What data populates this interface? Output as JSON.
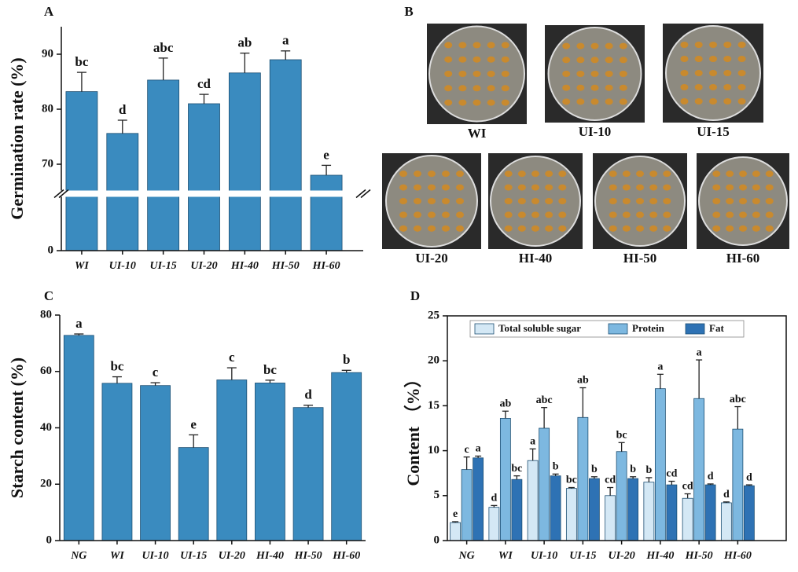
{
  "chart_data": [
    {
      "type": "bar",
      "panel_label": "A",
      "ylabel": "Germination rate (%)",
      "categories": [
        "WI",
        "UI-10",
        "UI-15",
        "UI-20",
        "HI-40",
        "HI-50",
        "HI-60"
      ],
      "values": [
        83.2,
        75.6,
        85.3,
        81,
        86.6,
        89,
        68
      ],
      "errors": [
        3.5,
        2.4,
        4,
        1.7,
        3.6,
        1.6,
        1.8
      ],
      "letters": [
        "bc",
        "d",
        "abc",
        "cd",
        "ab",
        "a",
        "e"
      ],
      "color": "#3a8bbf",
      "ylim": [
        0,
        95
      ],
      "ybreak": [
        10,
        65
      ],
      "yticks": [
        0,
        70,
        80,
        90
      ]
    },
    {
      "type": "bar",
      "panel_label": "C",
      "ylabel": "Starch content (%)",
      "categories": [
        "NG",
        "WI",
        "UI-10",
        "UI-15",
        "UI-20",
        "HI-40",
        "HI-50",
        "HI-60"
      ],
      "values": [
        72.8,
        55.8,
        55,
        33,
        57,
        55.9,
        47.2,
        59.6
      ],
      "errors": [
        0.5,
        2.3,
        1,
        4.5,
        4.3,
        1,
        0.8,
        0.8
      ],
      "letters": [
        "a",
        "bc",
        "c",
        "e",
        "c",
        "bc",
        "d",
        "b"
      ],
      "color": "#3a8bbf",
      "ylim": [
        0,
        80
      ],
      "yticks": [
        0,
        20,
        40,
        60,
        80
      ]
    },
    {
      "type": "grouped_bar",
      "panel_label": "D",
      "ylabel": "Content （%）",
      "categories": [
        "NG",
        "WI",
        "UI-10",
        "UI-15",
        "UI-20",
        "HI-40",
        "HI-50",
        "HI-60"
      ],
      "series": [
        {
          "name": "Total soluble sugar",
          "color": "#d4e8f5",
          "values": [
            2,
            3.7,
            8.9,
            5.8,
            5,
            6.5,
            4.7,
            4.2
          ],
          "errors": [
            0.1,
            0.2,
            1.3,
            0.1,
            0.9,
            0.5,
            0.5,
            0.1
          ],
          "letters": [
            "e",
            "d",
            "a",
            "bc",
            "cd",
            "b",
            "cd",
            "d"
          ]
        },
        {
          "name": "Protein",
          "color": "#7db8e0",
          "values": [
            7.9,
            13.6,
            12.5,
            13.7,
            9.9,
            16.9,
            15.8,
            12.4
          ],
          "errors": [
            1.4,
            0.8,
            2.3,
            3.3,
            1,
            1.6,
            4.3,
            2.5
          ],
          "letters": [
            "c",
            "ab",
            "abc",
            "ab",
            "bc",
            "a",
            "a",
            "abc"
          ]
        },
        {
          "name": "Fat",
          "color": "#2e72b4",
          "values": [
            9.2,
            6.8,
            7.2,
            6.9,
            6.9,
            6.2,
            6.2,
            6.1
          ],
          "errors": [
            0.2,
            0.4,
            0.2,
            0.2,
            0.2,
            0.4,
            0.1,
            0.1
          ],
          "letters": [
            "a",
            "bc",
            "b",
            "b",
            "b",
            "cd",
            "d",
            "d"
          ]
        }
      ],
      "ylim": [
        0,
        25
      ],
      "yticks": [
        0,
        5,
        10,
        15,
        20,
        25
      ],
      "legend": "top"
    }
  ],
  "photos": {
    "panel_label": "B",
    "captions": [
      "WI",
      "UI-10",
      "UI-15",
      "UI-20",
      "HI-40",
      "HI-50",
      "HI-60"
    ]
  }
}
